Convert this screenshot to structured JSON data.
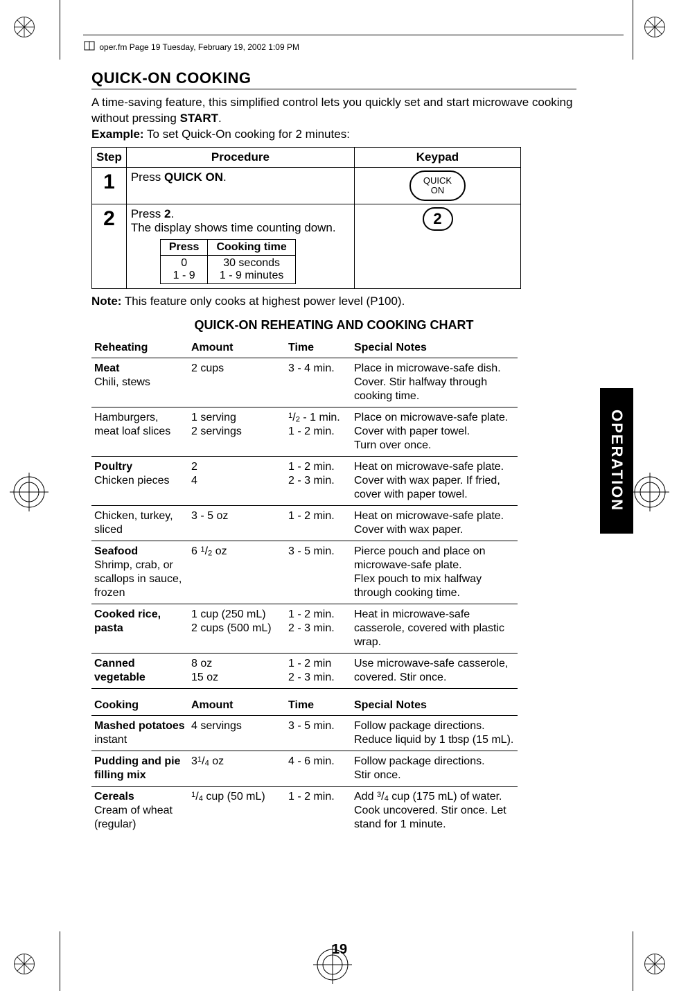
{
  "header_text": "oper.fm  Page 19  Tuesday, February 19, 2002  1:09 PM",
  "section_title": "QUICK-ON COOKING",
  "intro_line1": "A time-saving feature, this simplified control lets you quickly set and start microwave cooking without pressing ",
  "intro_start_word": "START",
  "intro_period": ".",
  "example_label": "Example:",
  "example_text": " To set Quick-On cooking for 2 minutes:",
  "proc_headers": {
    "step": "Step",
    "procedure": "Procedure",
    "keypad": "Keypad"
  },
  "step1": {
    "num": "1",
    "text_prefix": "Press ",
    "text_bold": "QUICK ON",
    "text_suffix": ".",
    "keypad_line1": "QUICK",
    "keypad_line2": "ON"
  },
  "step2": {
    "num": "2",
    "text_prefix": "Press ",
    "text_bold": "2",
    "text_suffix": ".",
    "text_line2": "The display shows time counting down.",
    "keypad_num": "2",
    "inner_headers": {
      "press": "Press",
      "cooking": "Cooking time"
    },
    "inner_rows": [
      {
        "press": "0",
        "time": "30 seconds"
      },
      {
        "press": "1 - 9",
        "time": "1 - 9 minutes"
      }
    ]
  },
  "note_label": "Note:",
  "note_text": " This feature only cooks at highest power level (P100).",
  "chart_title": "QUICK-ON REHEATING AND COOKING CHART",
  "reheat_headers": {
    "c1": "Reheating",
    "c2": "Amount",
    "c3": "Time",
    "c4": "Special Notes"
  },
  "reheat_rows": [
    {
      "c1_bold": "Meat",
      "c1_rest": "Chili, stews",
      "c2": "2 cups",
      "c3": "3 - 4 min.",
      "c4": "Place in microwave-safe dish. Cover. Stir halfway through cooking time."
    },
    {
      "c1_bold": "",
      "c1_rest": "Hamburgers, meat loaf slices",
      "c2": "1 serving\n2 servings",
      "c3_html": "<span class='frac'><sup>1</sup>/<sub>2</sub></span> - 1 min.<br>1 - 2 min.",
      "c4": "Place on microwave-safe plate. Cover with paper towel.\nTurn over once."
    },
    {
      "c1_bold": "Poultry",
      "c1_rest": "Chicken pieces",
      "c2": "2\n4",
      "c3": "1 - 2 min.\n2 - 3 min.",
      "c4": "Heat on microwave-safe plate. Cover with wax paper. If fried, cover with paper towel."
    },
    {
      "c1_bold": "",
      "c1_rest": "Chicken, turkey, sliced",
      "c2": "3 - 5 oz",
      "c3": "1 - 2 min.",
      "c4": "Heat on microwave-safe plate. Cover with wax paper."
    },
    {
      "c1_bold": "Seafood",
      "c1_rest": "Shrimp, crab, or scallops in sauce, frozen",
      "c2_html": "6 <span class='frac'><sup>1</sup>/<sub>2</sub></span> oz",
      "c3": "3 - 5 min.",
      "c4": "Pierce pouch and place on microwave-safe plate.\nFlex pouch to mix halfway through cooking time."
    },
    {
      "c1_bold": "Cooked rice, pasta",
      "c1_rest": "",
      "c2": "1 cup (250 mL)\n2 cups (500 mL)",
      "c3": "1 - 2 min.\n2 - 3 min.",
      "c4": "Heat in microwave-safe casserole, covered with plastic wrap."
    },
    {
      "c1_bold": "Canned vegetable",
      "c1_rest": "",
      "c2": "8 oz\n15 oz",
      "c3": "1 - 2 min\n2 - 3 min.",
      "c4": "Use microwave-safe casserole, covered. Stir once."
    }
  ],
  "cook_headers": {
    "c1": "Cooking",
    "c2": "Amount",
    "c3": "Time",
    "c4": "Special Notes"
  },
  "cook_rows": [
    {
      "c1_bold": "Mashed potatoes",
      "c1_rest": "instant",
      "c2": "4 servings",
      "c3": "3 - 5 min.",
      "c4": "Follow package directions. Reduce liquid by 1 tbsp (15 mL)."
    },
    {
      "c1_bold": "Pudding and pie filling mix",
      "c1_rest": "",
      "c2_html": "3<span class='frac'><sup>1</sup>/<sub>4</sub></span> oz",
      "c3": "4 - 6 min.",
      "c4": "Follow package directions.\nStir once."
    },
    {
      "c1_bold": "Cereals",
      "c1_rest": "Cream of wheat (regular)",
      "c2_html": "<span class='frac'><sup>1</sup>/<sub>4</sub></span> cup (50 mL)",
      "c3": "1 - 2 min.",
      "c4_html": "Add <span class='frac'><sup>3</sup>/<sub>4</sub></span> cup (175 mL) of water. Cook uncovered. Stir once. Let stand for 1 minute."
    }
  ],
  "side_tab": "OPERATION",
  "page_number": "19"
}
